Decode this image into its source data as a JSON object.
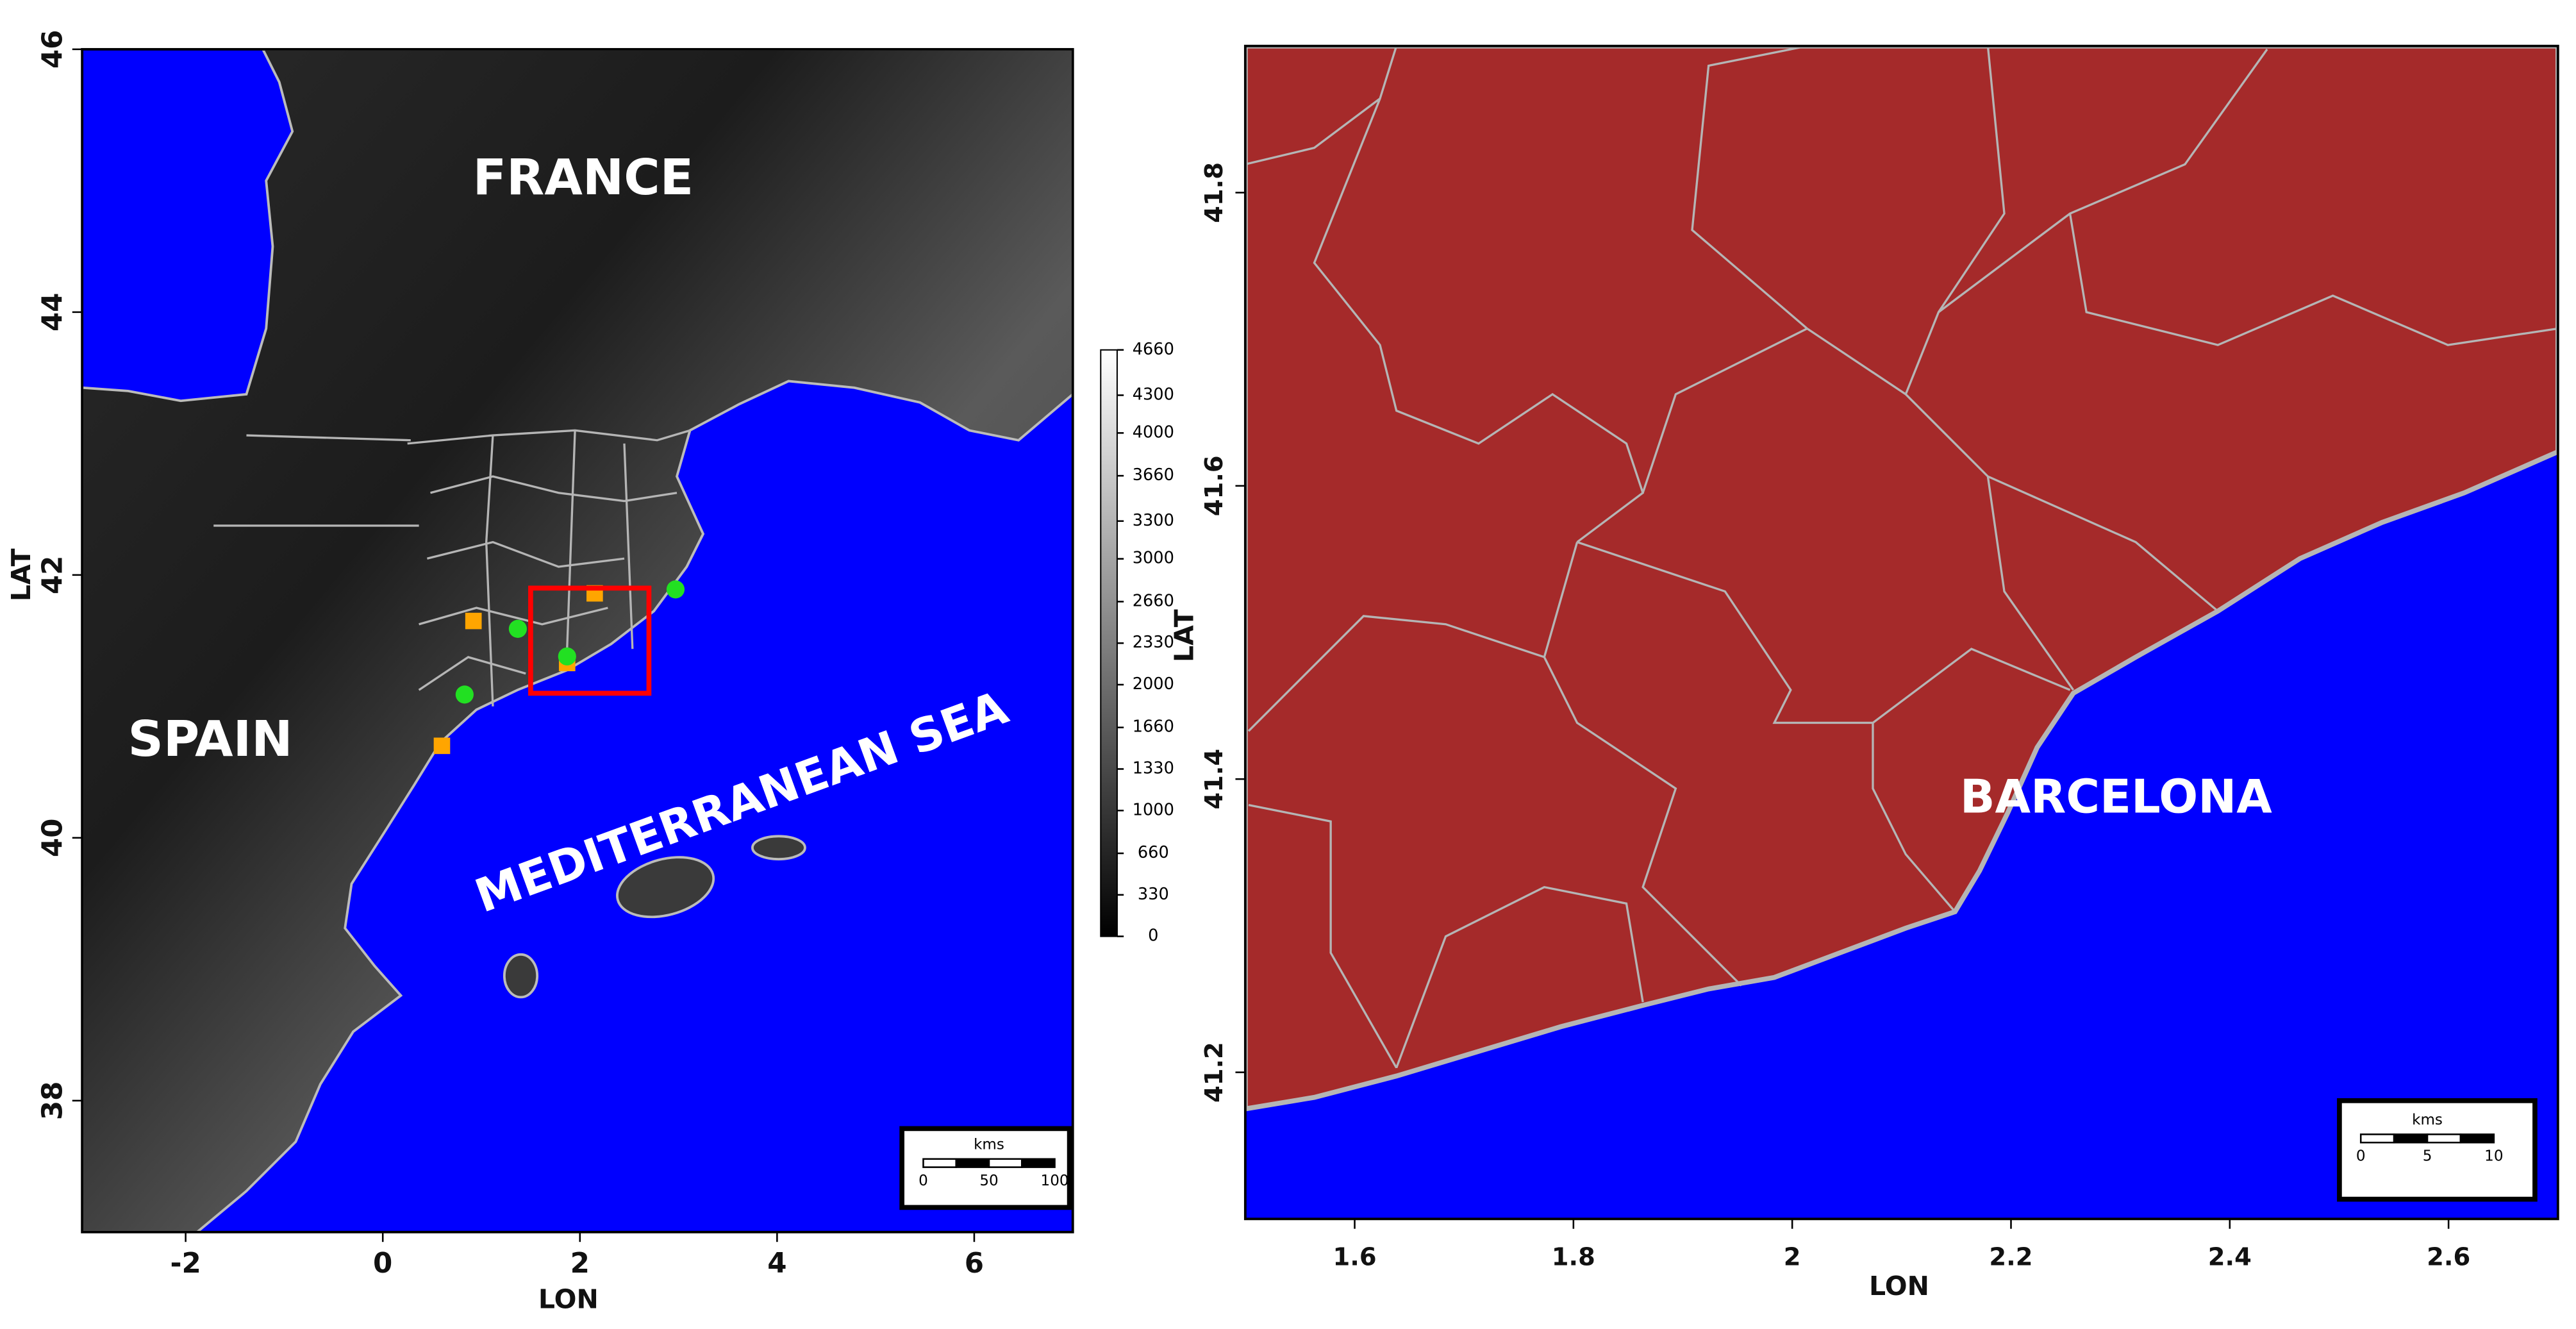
{
  "chart_data": [
    {
      "type": "map",
      "xlabel": "LON",
      "ylabel": "LAT",
      "xlim": [
        -3.05,
        7.0
      ],
      "ylim": [
        37,
        46
      ],
      "xticks": [
        -2,
        0,
        2,
        4,
        6
      ],
      "yticks": [
        38,
        40,
        42,
        44,
        46
      ],
      "labels": [
        "FRANCE",
        "SPAIN",
        "MEDITERRANEAN SEA"
      ],
      "series": [
        {
          "marker": "square",
          "color": "#ffa500",
          "x": [
            0.92,
            2.15,
            1.87,
            0.6
          ],
          "y": [
            41.65,
            41.86,
            41.33,
            40.7
          ]
        },
        {
          "marker": "circle",
          "color": "#22e022",
          "x": [
            1.37,
            1.87,
            2.97,
            0.83
          ],
          "y": [
            41.59,
            41.38,
            41.89,
            41.09
          ]
        }
      ],
      "box": {
        "color": "#ff0000",
        "xlim": [
          1.5,
          2.7
        ],
        "ylim": [
          41.1,
          41.9
        ]
      },
      "colorbar": {
        "lim": [
          0,
          4660
        ],
        "ticks": [
          0,
          330,
          660,
          1000,
          1330,
          1660,
          2000,
          2330,
          2660,
          3000,
          3300,
          3660,
          4000,
          4300,
          4660
        ]
      },
      "scalebar": {
        "unit": "kms",
        "ticks": [
          0,
          50,
          100
        ]
      }
    },
    {
      "type": "map",
      "xlabel": "LON",
      "ylabel": "LAT",
      "xlim": [
        1.5,
        2.7
      ],
      "ylim": [
        41.1,
        41.9
      ],
      "xticks": [
        1.6,
        1.8,
        2.0,
        2.2,
        2.4,
        2.6
      ],
      "yticks": [
        41.2,
        41.4,
        41.6,
        41.8
      ],
      "labels": [
        "BARCELONA"
      ],
      "scalebar": {
        "unit": "kms",
        "ticks": [
          0,
          5,
          10
        ]
      }
    }
  ]
}
